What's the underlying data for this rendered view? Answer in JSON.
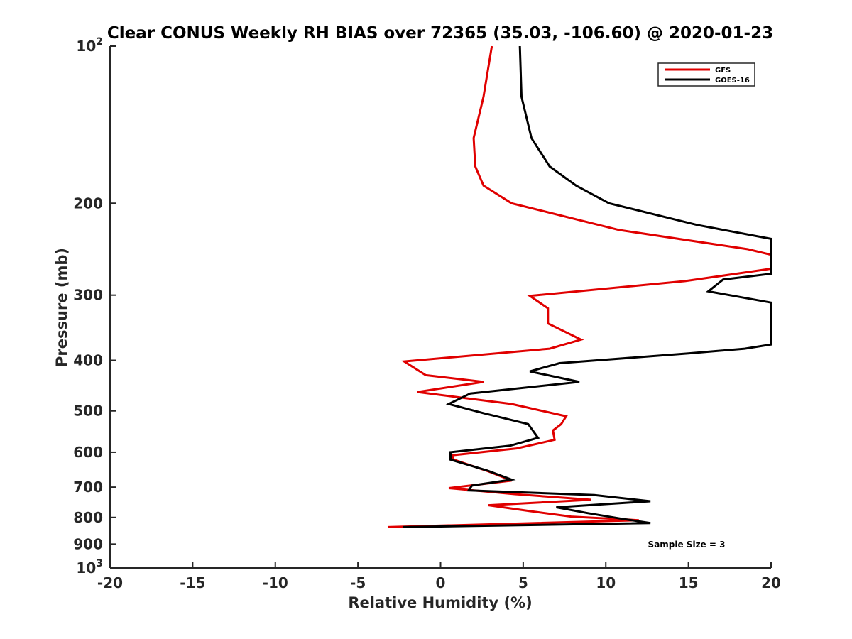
{
  "chart_data": {
    "type": "line",
    "title": "Clear CONUS Weekly RH BIAS over 72365 (35.03, -106.60) @ 2020-01-23",
    "xlabel": "Relative Humidity (%)",
    "ylabel": "Pressure (mb)",
    "xlim": [
      -20,
      20
    ],
    "ylim": [
      100,
      1000
    ],
    "y_scale": "log",
    "y_reversed": true,
    "grid": false,
    "legend_position": "top-right",
    "x_ticks": [
      "-20",
      "-15",
      "-10",
      "-5",
      "0",
      "5",
      "10",
      "15",
      "20"
    ],
    "y_ticks": [
      {
        "value": 100,
        "base": "10",
        "exp": "2"
      },
      {
        "value": 200,
        "label": "200"
      },
      {
        "value": 300,
        "label": "300"
      },
      {
        "value": 400,
        "label": "400"
      },
      {
        "value": 500,
        "label": "500"
      },
      {
        "value": 600,
        "label": "600"
      },
      {
        "value": 700,
        "label": "700"
      },
      {
        "value": 800,
        "label": "800"
      },
      {
        "value": 900,
        "label": "900"
      },
      {
        "value": 1000,
        "base": "10",
        "exp": "3"
      }
    ],
    "annotation": "Sample Size = 3",
    "series": [
      {
        "name": "GFS",
        "color": "#e00000",
        "points": [
          [
            3.1,
            100
          ],
          [
            2.6,
            125
          ],
          [
            2.0,
            150
          ],
          [
            2.1,
            170
          ],
          [
            2.6,
            185
          ],
          [
            4.3,
            200
          ],
          [
            10.8,
            225
          ],
          [
            18.6,
            245
          ],
          [
            20.0,
            251
          ],
          [
            20.0,
            267
          ],
          [
            14.8,
            282
          ],
          [
            5.4,
            301
          ],
          [
            6.5,
            318
          ],
          [
            6.5,
            340
          ],
          [
            8.5,
            365
          ],
          [
            6.6,
            380
          ],
          [
            -2.2,
            402
          ],
          [
            -0.9,
            427
          ],
          [
            2.6,
            440
          ],
          [
            -1.4,
            460
          ],
          [
            4.3,
            485
          ],
          [
            7.6,
            512
          ],
          [
            7.3,
            530
          ],
          [
            6.8,
            545
          ],
          [
            6.9,
            568
          ],
          [
            4.6,
            590
          ],
          [
            0.7,
            608
          ],
          [
            0.8,
            620
          ],
          [
            2.9,
            653
          ],
          [
            4.3,
            680
          ],
          [
            0.5,
            703
          ],
          [
            4.5,
            722
          ],
          [
            9.1,
            740
          ],
          [
            2.9,
            758
          ],
          [
            5.4,
            778
          ],
          [
            7.9,
            797
          ],
          [
            12.0,
            810
          ],
          [
            -3.2,
            835
          ]
        ]
      },
      {
        "name": "GOES-16",
        "color": "#000000",
        "points": [
          [
            4.8,
            100
          ],
          [
            4.9,
            125
          ],
          [
            5.5,
            150
          ],
          [
            6.6,
            170
          ],
          [
            8.2,
            185
          ],
          [
            10.2,
            200
          ],
          [
            15.5,
            220
          ],
          [
            20.0,
            234
          ],
          [
            20.0,
            273
          ],
          [
            17.1,
            280
          ],
          [
            16.2,
            295
          ],
          [
            20.0,
            310
          ],
          [
            20.0,
            373
          ],
          [
            18.4,
            380
          ],
          [
            15.0,
            388
          ],
          [
            7.2,
            405
          ],
          [
            5.4,
            420
          ],
          [
            8.4,
            440
          ],
          [
            1.8,
            463
          ],
          [
            0.5,
            485
          ],
          [
            2.6,
            505
          ],
          [
            5.3,
            530
          ],
          [
            5.9,
            563
          ],
          [
            4.2,
            583
          ],
          [
            0.6,
            600
          ],
          [
            0.6,
            620
          ],
          [
            2.8,
            650
          ],
          [
            4.3,
            677
          ],
          [
            1.9,
            695
          ],
          [
            1.7,
            710
          ],
          [
            9.3,
            725
          ],
          [
            12.7,
            745
          ],
          [
            7.0,
            765
          ],
          [
            8.9,
            785
          ],
          [
            11.0,
            805
          ],
          [
            12.7,
            820
          ],
          [
            -2.3,
            835
          ]
        ]
      }
    ]
  }
}
